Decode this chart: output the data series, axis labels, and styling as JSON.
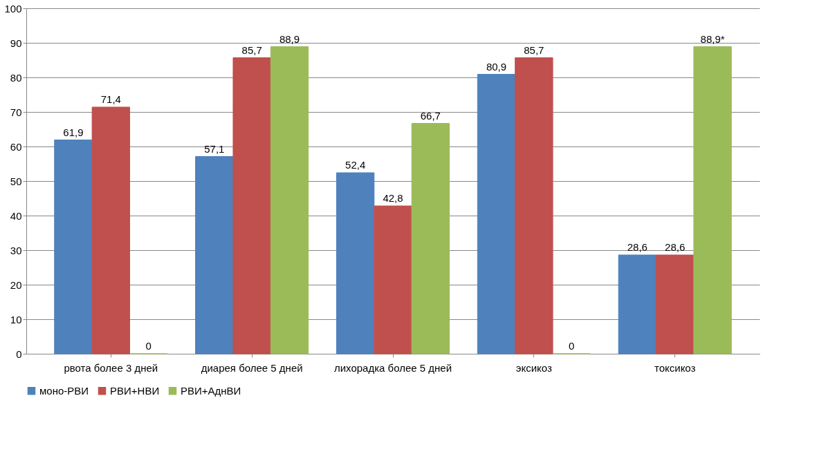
{
  "chart_data": {
    "type": "bar",
    "categories": [
      "рвота более 3 дней",
      "диарея более 5 дней",
      "лихорадка более 5 дней",
      "эксикоз",
      "токсикоз"
    ],
    "series": [
      {
        "name": "моно-РВИ",
        "color": "#4f81bd",
        "values": [
          61.9,
          57.1,
          52.4,
          80.9,
          28.6
        ],
        "value_labels": [
          "61,9",
          "57,1",
          "52,4",
          "80,9",
          "28,6"
        ]
      },
      {
        "name": "РВИ+НВИ",
        "color": "#c0504d",
        "values": [
          71.4,
          85.7,
          42.8,
          85.7,
          28.6
        ],
        "value_labels": [
          "71,4",
          "85,7",
          "42,8",
          "85,7",
          "28,6"
        ]
      },
      {
        "name": "РВИ+АднВИ",
        "color": "#9bbb59",
        "values": [
          0,
          88.9,
          66.7,
          0,
          88.9
        ],
        "value_labels": [
          "0",
          "88,9",
          "66,7",
          "0",
          "88,9*"
        ]
      }
    ],
    "ylim": [
      0,
      100
    ],
    "yticks": [
      0,
      10,
      20,
      30,
      40,
      50,
      60,
      70,
      80,
      90,
      100
    ],
    "grid": "y",
    "legend": "bottom"
  }
}
